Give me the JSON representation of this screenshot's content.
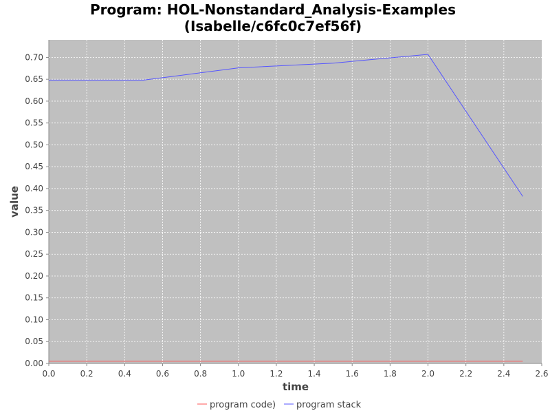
{
  "chart_data": {
    "type": "line",
    "title_line1": "Program: HOL-Nonstandard_Analysis-Examples",
    "title_line2": "(Isabelle/c6fc0c7ef56f)",
    "xlabel": "time",
    "ylabel": "value",
    "xlim": [
      0.0,
      2.6
    ],
    "ylim": [
      0.0,
      0.74
    ],
    "x_ticks": [
      "0.0",
      "0.2",
      "0.4",
      "0.6",
      "0.8",
      "1.0",
      "1.2",
      "1.4",
      "1.6",
      "1.8",
      "2.0",
      "2.2",
      "2.4",
      "2.6"
    ],
    "x_tick_values": [
      0.0,
      0.2,
      0.4,
      0.6,
      0.8,
      1.0,
      1.2,
      1.4,
      1.6,
      1.8,
      2.0,
      2.2,
      2.4,
      2.6
    ],
    "y_ticks": [
      "0.00",
      "0.05",
      "0.10",
      "0.15",
      "0.20",
      "0.25",
      "0.30",
      "0.35",
      "0.40",
      "0.45",
      "0.50",
      "0.55",
      "0.60",
      "0.65",
      "0.70"
    ],
    "y_tick_values": [
      0.0,
      0.05,
      0.1,
      0.15,
      0.2,
      0.25,
      0.3,
      0.35,
      0.4,
      0.45,
      0.5,
      0.55,
      0.6,
      0.65,
      0.7
    ],
    "grid": true,
    "legend_position": "bottom",
    "series": [
      {
        "name": "program code)",
        "color": "#ff5555",
        "x": [
          0.0,
          0.5,
          1.0,
          1.5,
          2.0,
          2.5
        ],
        "y": [
          0.005,
          0.005,
          0.005,
          0.005,
          0.005,
          0.005
        ]
      },
      {
        "name": "program stack",
        "color": "#5555ff",
        "x": [
          0.0,
          0.5,
          1.0,
          1.5,
          2.0,
          2.5
        ],
        "y": [
          0.648,
          0.648,
          0.676,
          0.687,
          0.707,
          0.382
        ]
      }
    ],
    "plot_background": "#c0c0c0",
    "grid_color": "#ffffff"
  }
}
